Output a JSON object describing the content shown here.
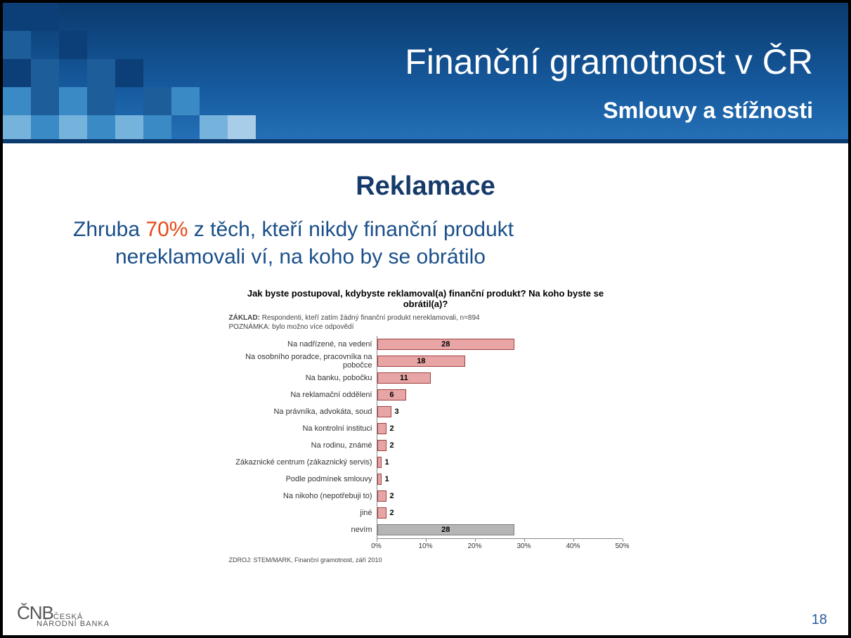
{
  "header": {
    "title": "Finanční gramotnost v ČR",
    "subtitle": "Smlouvy a stížnosti",
    "bg_gradient": [
      "#0a3a6e",
      "#165a9e",
      "#2571b8"
    ],
    "rule_color": "#0a3a6e",
    "mosaic_colors": [
      "#0c3f77",
      "#1d5d9a",
      "#3a8ac6",
      "#76b3dc",
      "#a8cde8"
    ]
  },
  "body": {
    "section_title": "Reklamace",
    "lead_pre": "Zhruba ",
    "lead_pct": "70%",
    "lead_mid": " z těch, kteří nikdy finanční produkt",
    "lead_line2": "nereklamovali ví, na koho by se obrátilo",
    "title_color": "#163a6b",
    "lead_color": "#1a4f8a",
    "pct_color": "#e64a19"
  },
  "chart": {
    "type": "bar-horizontal",
    "title": "Jak byste postupoval, kdybyste reklamoval(a) finanční produkt? Na koho byste se obrátil(a)?",
    "meta_base_label": "ZÁKLAD:",
    "meta_base_text": " Respondenti, kteří zatím žádný finanční produkt nereklamovali, n=894",
    "meta_note_label": "POZNÁMKA:",
    "meta_note_text": " bylo možno více odpovědí",
    "categories": [
      "Na nadřízené, na vedení",
      "Na osobního poradce, pracovníka na pobočce",
      "Na banku, pobočku",
      "Na reklamační oddělení",
      "Na právníka, advokáta, soud",
      "Na kontrolní instituci",
      "Na rodinu, známé",
      "Zákaznické centrum (zákaznický servis)",
      "Podle podmínek smlouvy",
      "Na nikoho (nepotřebuji to)",
      "jiné",
      "nevím"
    ],
    "values": [
      28,
      18,
      11,
      6,
      3,
      2,
      2,
      1,
      1,
      2,
      2,
      28
    ],
    "bar_colors": [
      "#e8a5a5",
      "#e8a5a5",
      "#e8a5a5",
      "#e8a5a5",
      "#e8a5a5",
      "#e8a5a5",
      "#e8a5a5",
      "#e8a5a5",
      "#e8a5a5",
      "#e8a5a5",
      "#e8a5a5",
      "#b5b5b5"
    ],
    "bar_border": "#a04040",
    "bar_border_gray": "#808080",
    "xmax": 50,
    "xticks": [
      0,
      10,
      20,
      30,
      40,
      50
    ],
    "xtick_labels": [
      "0%",
      "10%",
      "20%",
      "30%",
      "40%",
      "50%"
    ],
    "label_fontsize": 11,
    "title_fontsize": 13,
    "source": "ZDROJ: STEM/MARK, Finanční gramotnost, září 2010",
    "axis_color": "#888888"
  },
  "footer": {
    "logo_top": "ČNB",
    "logo_ceska": "ČESKÁ",
    "logo_narodni": "NÁRODNÍ BANKA",
    "logo_color": "#565656",
    "page_number": "18",
    "page_color": "#2a5a9e"
  }
}
